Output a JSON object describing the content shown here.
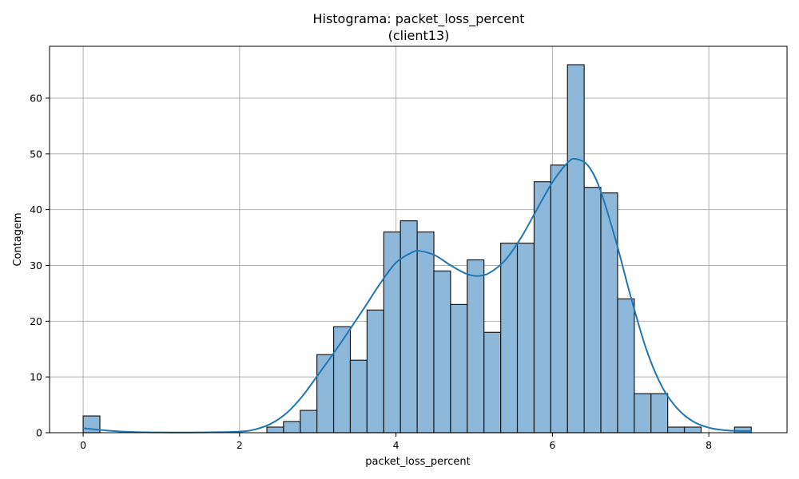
{
  "chart_data": {
    "type": "bar",
    "title_line1": "Histograma: packet_loss_percent",
    "title_line2": "(client13)",
    "xlabel": "packet_loss_percent",
    "ylabel": "Contagem",
    "xlim": [
      -0.43,
      9.0
    ],
    "ylim": [
      0,
      69.3
    ],
    "xticks": [
      0,
      2,
      4,
      6,
      8
    ],
    "yticks": [
      0,
      10,
      20,
      30,
      40,
      50,
      60
    ],
    "grid": true,
    "bin_width": 0.2135,
    "bins": [
      {
        "x0": 0.0,
        "count": 3
      },
      {
        "x0": 2.349,
        "count": 1
      },
      {
        "x0": 2.562,
        "count": 2
      },
      {
        "x0": 2.776,
        "count": 4
      },
      {
        "x0": 2.989,
        "count": 14
      },
      {
        "x0": 3.203,
        "count": 19
      },
      {
        "x0": 3.416,
        "count": 13
      },
      {
        "x0": 3.63,
        "count": 22
      },
      {
        "x0": 3.844,
        "count": 36
      },
      {
        "x0": 4.057,
        "count": 38
      },
      {
        "x0": 4.271,
        "count": 36
      },
      {
        "x0": 4.484,
        "count": 29
      },
      {
        "x0": 4.698,
        "count": 23
      },
      {
        "x0": 4.911,
        "count": 31
      },
      {
        "x0": 5.125,
        "count": 18
      },
      {
        "x0": 5.339,
        "count": 34
      },
      {
        "x0": 5.552,
        "count": 34
      },
      {
        "x0": 5.766,
        "count": 45
      },
      {
        "x0": 5.979,
        "count": 48
      },
      {
        "x0": 6.193,
        "count": 66
      },
      {
        "x0": 6.406,
        "count": 44
      },
      {
        "x0": 6.62,
        "count": 43
      },
      {
        "x0": 6.834,
        "count": 24
      },
      {
        "x0": 7.047,
        "count": 7
      },
      {
        "x0": 7.261,
        "count": 7
      },
      {
        "x0": 7.474,
        "count": 1
      },
      {
        "x0": 7.688,
        "count": 1
      },
      {
        "x0": 8.329,
        "count": 1
      }
    ],
    "kde": {
      "x": [
        0.0,
        0.3,
        0.6,
        1.0,
        1.5,
        2.0,
        2.2,
        2.4,
        2.6,
        2.8,
        3.0,
        3.2,
        3.4,
        3.6,
        3.8,
        4.0,
        4.2,
        4.3,
        4.5,
        4.7,
        4.9,
        5.05,
        5.2,
        5.4,
        5.6,
        5.8,
        6.0,
        6.2,
        6.3,
        6.45,
        6.6,
        6.8,
        7.0,
        7.2,
        7.4,
        7.6,
        7.8,
        8.0,
        8.2,
        8.4,
        8.55
      ],
      "y": [
        0.8,
        0.4,
        0.15,
        0.05,
        0.05,
        0.2,
        0.6,
        1.6,
        3.5,
        6.5,
        10.3,
        14.2,
        18.3,
        22.5,
        26.8,
        30.5,
        32.3,
        32.6,
        31.8,
        30.0,
        28.5,
        28.1,
        28.7,
        31.0,
        35.0,
        40.0,
        44.9,
        48.5,
        49.1,
        48.0,
        44.0,
        35.0,
        24.5,
        15.0,
        8.3,
        4.3,
        2.0,
        0.9,
        0.45,
        0.3,
        0.3
      ]
    }
  }
}
